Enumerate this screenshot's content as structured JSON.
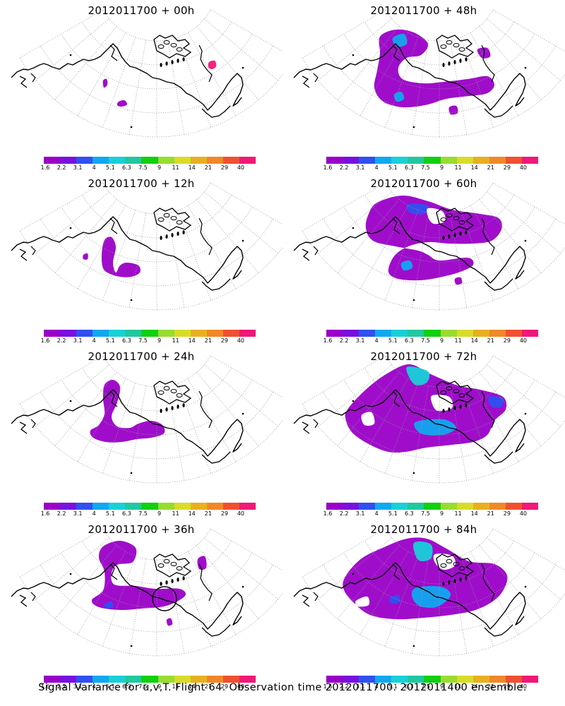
{
  "footer_text": "Signal Variance for u,v,T. Flight 64. Observation time 2012011700. 2012011400 ensemble.",
  "colorbar": {
    "colors": [
      "#9a00c8",
      "#7a10e0",
      "#3050f0",
      "#10a8f0",
      "#18d0d8",
      "#20c8a0",
      "#10d010",
      "#98dc30",
      "#d8dc28",
      "#e8b020",
      "#f08828",
      "#f05030",
      "#f01878"
    ],
    "labels": [
      "1.6",
      "2.2",
      "3.1",
      "4",
      "5.1",
      "6.3",
      "7.5",
      "9",
      "11",
      "14",
      "21",
      "29",
      "40"
    ]
  },
  "chart_data": [
    {
      "type": "heatmap",
      "title": "2012011700 + 00h",
      "forecast_hour": 0
    },
    {
      "type": "heatmap",
      "title": "2012011700 + 48h",
      "forecast_hour": 48
    },
    {
      "type": "heatmap",
      "title": "2012011700 + 12h",
      "forecast_hour": 12
    },
    {
      "type": "heatmap",
      "title": "2012011700 + 60h",
      "forecast_hour": 60
    },
    {
      "type": "heatmap",
      "title": "2012011700 + 24h",
      "forecast_hour": 24
    },
    {
      "type": "heatmap",
      "title": "2012011700 + 72h",
      "forecast_hour": 72
    },
    {
      "type": "heatmap",
      "title": "2012011700 + 36h",
      "forecast_hour": 36
    },
    {
      "type": "heatmap",
      "title": "2012011700 + 84h",
      "forecast_hour": 84
    }
  ]
}
